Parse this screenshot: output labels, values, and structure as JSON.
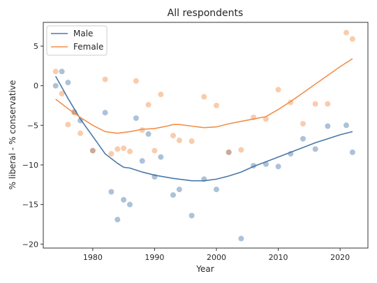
{
  "chart_data": {
    "type": "scatter",
    "title": "All respondents",
    "xlabel": "Year",
    "ylabel": "% liberal - % conservative",
    "xlim": [
      1972,
      2024.5
    ],
    "ylim": [
      -20.5,
      8
    ],
    "xticks": [
      1980,
      1990,
      2000,
      2010,
      2020
    ],
    "yticks": [
      5,
      0,
      -5,
      -10,
      -15,
      -20
    ],
    "grid": false,
    "legend_position": "top-left",
    "series": [
      {
        "name": "Male",
        "color": "#4878a8",
        "points": [
          [
            1974,
            0.0
          ],
          [
            1975,
            1.8
          ],
          [
            1976,
            0.4
          ],
          [
            1977,
            -3.3
          ],
          [
            1978,
            -4.4
          ],
          [
            1980,
            -8.2
          ],
          [
            1982,
            -3.4
          ],
          [
            1983,
            -13.4
          ],
          [
            1984,
            -16.9
          ],
          [
            1985,
            -14.4
          ],
          [
            1986,
            -15.0
          ],
          [
            1987,
            -4.1
          ],
          [
            1988,
            -9.5
          ],
          [
            1989,
            -6.1
          ],
          [
            1990,
            -11.5
          ],
          [
            1991,
            -9.0
          ],
          [
            1993,
            -13.8
          ],
          [
            1994,
            -13.1
          ],
          [
            1996,
            -16.4
          ],
          [
            1998,
            -11.8
          ],
          [
            2000,
            -13.1
          ],
          [
            2002,
            -8.4
          ],
          [
            2004,
            -19.3
          ],
          [
            2006,
            -10.1
          ],
          [
            2008,
            -9.9
          ],
          [
            2010,
            -10.2
          ],
          [
            2012,
            -8.6
          ],
          [
            2014,
            -6.7
          ],
          [
            2016,
            -8.0
          ],
          [
            2018,
            -5.1
          ],
          [
            2021,
            -5.0
          ],
          [
            2022,
            -8.4
          ]
        ],
        "trend": [
          [
            1974,
            1.2
          ],
          [
            1976,
            -1.6
          ],
          [
            1978,
            -4.2
          ],
          [
            1980,
            -6.4
          ],
          [
            1982,
            -8.6
          ],
          [
            1984,
            -9.8
          ],
          [
            1985,
            -10.3
          ],
          [
            1986,
            -10.4
          ],
          [
            1988,
            -10.9
          ],
          [
            1990,
            -11.3
          ],
          [
            1993,
            -11.7
          ],
          [
            1996,
            -12.0
          ],
          [
            1998,
            -12.0
          ],
          [
            2000,
            -11.8
          ],
          [
            2002,
            -11.4
          ],
          [
            2004,
            -10.9
          ],
          [
            2006,
            -10.2
          ],
          [
            2008,
            -9.6
          ],
          [
            2010,
            -9.0
          ],
          [
            2012,
            -8.4
          ],
          [
            2014,
            -7.8
          ],
          [
            2016,
            -7.2
          ],
          [
            2018,
            -6.7
          ],
          [
            2020,
            -6.2
          ],
          [
            2022,
            -5.8
          ]
        ]
      },
      {
        "name": "Female",
        "color": "#f28e4a",
        "points": [
          [
            1974,
            1.8
          ],
          [
            1975,
            -1.0
          ],
          [
            1976,
            -4.9
          ],
          [
            1977,
            -3.4
          ],
          [
            1978,
            -6.0
          ],
          [
            1980,
            -8.2
          ],
          [
            1982,
            0.8
          ],
          [
            1983,
            -8.6
          ],
          [
            1984,
            -8.0
          ],
          [
            1985,
            -7.9
          ],
          [
            1986,
            -8.3
          ],
          [
            1987,
            0.6
          ],
          [
            1988,
            -5.6
          ],
          [
            1989,
            -2.4
          ],
          [
            1990,
            -8.2
          ],
          [
            1991,
            -1.1
          ],
          [
            1993,
            -6.3
          ],
          [
            1994,
            -6.9
          ],
          [
            1996,
            -7.0
          ],
          [
            1998,
            -1.4
          ],
          [
            2000,
            -2.5
          ],
          [
            2002,
            -8.4
          ],
          [
            2004,
            -8.1
          ],
          [
            2006,
            -4.0
          ],
          [
            2008,
            -4.2
          ],
          [
            2010,
            -0.5
          ],
          [
            2012,
            -2.1
          ],
          [
            2014,
            -4.8
          ],
          [
            2016,
            -2.3
          ],
          [
            2018,
            -2.3
          ],
          [
            2021,
            6.7
          ],
          [
            2022,
            5.9
          ]
        ],
        "trend": [
          [
            1974,
            -1.7
          ],
          [
            1976,
            -2.9
          ],
          [
            1978,
            -4.0
          ],
          [
            1980,
            -5.0
          ],
          [
            1982,
            -5.8
          ],
          [
            1984,
            -6.0
          ],
          [
            1986,
            -5.8
          ],
          [
            1988,
            -5.5
          ],
          [
            1990,
            -5.4
          ],
          [
            1992,
            -5.1
          ],
          [
            1993,
            -4.9
          ],
          [
            1994,
            -4.9
          ],
          [
            1996,
            -5.1
          ],
          [
            1998,
            -5.3
          ],
          [
            2000,
            -5.2
          ],
          [
            2002,
            -4.8
          ],
          [
            2004,
            -4.5
          ],
          [
            2006,
            -4.2
          ],
          [
            2008,
            -3.9
          ],
          [
            2010,
            -3.0
          ],
          [
            2012,
            -2.0
          ],
          [
            2014,
            -0.9
          ],
          [
            2016,
            0.2
          ],
          [
            2018,
            1.3
          ],
          [
            2020,
            2.4
          ],
          [
            2022,
            3.4
          ]
        ]
      }
    ]
  }
}
